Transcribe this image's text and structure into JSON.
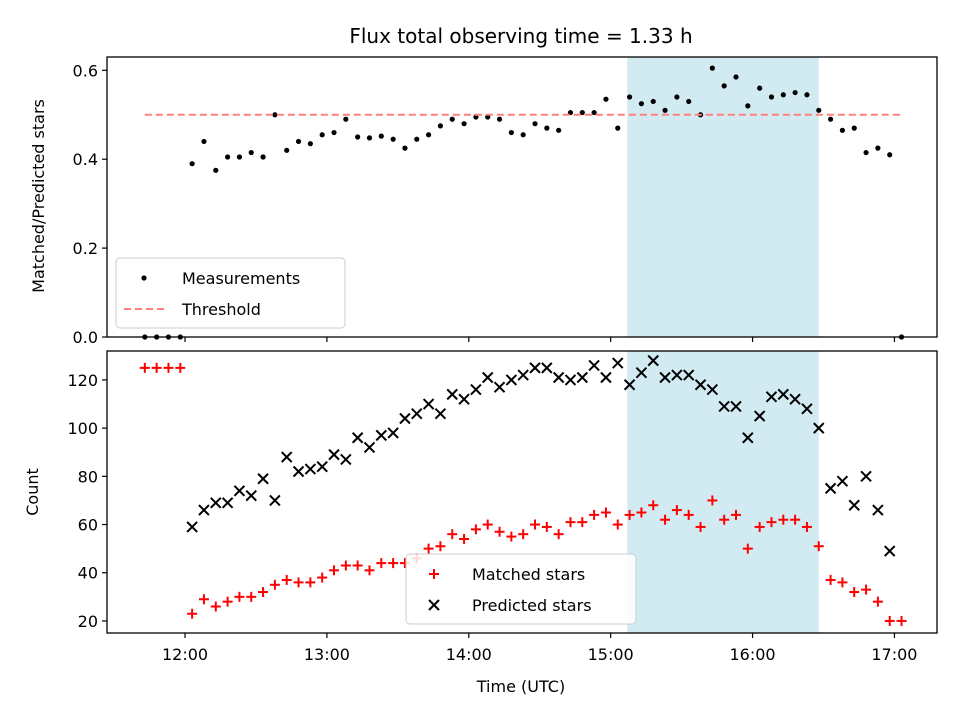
{
  "figure": {
    "title": "Flux total observing time = 1.33 h",
    "xlabel": "Time (UTC)"
  },
  "chart_data": [
    {
      "type": "scatter",
      "panel": "top",
      "ylabel": "Matched/Predicted stars",
      "xlim": [
        "11:27",
        "17:18"
      ],
      "ylim": [
        0,
        0.63
      ],
      "yticks": [
        "0.0",
        "0.2",
        "0.4",
        "0.6"
      ],
      "highlight_span": [
        "15:07",
        "16:28"
      ],
      "highlight_color": "#add8e6",
      "legend_position": "lower left",
      "series": [
        {
          "name": "Measurements",
          "color": "#000000",
          "marker": "dot",
          "points": [
            [
              "11:43",
              0.0
            ],
            [
              "11:48",
              0.0
            ],
            [
              "11:53",
              0.0
            ],
            [
              "11:58",
              0.0
            ],
            [
              "12:03",
              0.39
            ],
            [
              "12:08",
              0.44
            ],
            [
              "12:13",
              0.375
            ],
            [
              "12:18",
              0.405
            ],
            [
              "12:23",
              0.405
            ],
            [
              "12:28",
              0.415
            ],
            [
              "12:33",
              0.405
            ],
            [
              "12:38",
              0.5
            ],
            [
              "12:43",
              0.42
            ],
            [
              "12:48",
              0.44
            ],
            [
              "12:53",
              0.435
            ],
            [
              "12:58",
              0.455
            ],
            [
              "13:03",
              0.46
            ],
            [
              "13:08",
              0.49
            ],
            [
              "13:13",
              0.45
            ],
            [
              "13:18",
              0.448
            ],
            [
              "13:23",
              0.452
            ],
            [
              "13:28",
              0.445
            ],
            [
              "13:33",
              0.425
            ],
            [
              "13:38",
              0.445
            ],
            [
              "13:43",
              0.455
            ],
            [
              "13:48",
              0.475
            ],
            [
              "13:53",
              0.49
            ],
            [
              "13:58",
              0.48
            ],
            [
              "14:03",
              0.495
            ],
            [
              "14:08",
              0.495
            ],
            [
              "14:13",
              0.49
            ],
            [
              "14:18",
              0.46
            ],
            [
              "14:23",
              0.455
            ],
            [
              "14:28",
              0.48
            ],
            [
              "14:33",
              0.47
            ],
            [
              "14:38",
              0.465
            ],
            [
              "14:43",
              0.505
            ],
            [
              "14:48",
              0.505
            ],
            [
              "14:53",
              0.505
            ],
            [
              "14:58",
              0.535
            ],
            [
              "15:03",
              0.47
            ],
            [
              "15:08",
              0.54
            ],
            [
              "15:13",
              0.525
            ],
            [
              "15:18",
              0.53
            ],
            [
              "15:23",
              0.51
            ],
            [
              "15:28",
              0.54
            ],
            [
              "15:33",
              0.53
            ],
            [
              "15:38",
              0.5
            ],
            [
              "15:43",
              0.605
            ],
            [
              "15:48",
              0.565
            ],
            [
              "15:53",
              0.585
            ],
            [
              "15:58",
              0.52
            ],
            [
              "16:03",
              0.56
            ],
            [
              "16:08",
              0.54
            ],
            [
              "16:13",
              0.545
            ],
            [
              "16:18",
              0.55
            ],
            [
              "16:23",
              0.545
            ],
            [
              "16:28",
              0.51
            ],
            [
              "16:33",
              0.49
            ],
            [
              "16:38",
              0.465
            ],
            [
              "16:43",
              0.47
            ],
            [
              "16:48",
              0.415
            ],
            [
              "16:53",
              0.425
            ],
            [
              "16:58",
              0.41
            ],
            [
              "17:03",
              0.0
            ]
          ]
        },
        {
          "name": "Threshold",
          "color": "#ff7f7f",
          "style": "dashed",
          "points": [
            [
              "11:43",
              0.5
            ],
            [
              "17:03",
              0.5
            ]
          ]
        }
      ]
    },
    {
      "type": "scatter",
      "panel": "bottom",
      "ylabel": "Count",
      "xlim": [
        "11:27",
        "17:18"
      ],
      "ylim": [
        15,
        132
      ],
      "yticks": [
        "20",
        "40",
        "60",
        "80",
        "100",
        "120"
      ],
      "xticks": [
        "12:00",
        "13:00",
        "14:00",
        "15:00",
        "16:00",
        "17:00"
      ],
      "highlight_span": [
        "15:07",
        "16:28"
      ],
      "highlight_color": "#add8e6",
      "legend_position": "lower center",
      "series": [
        {
          "name": "Matched stars",
          "color": "#ff0000",
          "marker": "plus",
          "points": [
            [
              "11:43",
              125
            ],
            [
              "11:48",
              125
            ],
            [
              "11:53",
              125
            ],
            [
              "11:58",
              125
            ],
            [
              "12:03",
              23
            ],
            [
              "12:08",
              29
            ],
            [
              "12:13",
              26
            ],
            [
              "12:18",
              28
            ],
            [
              "12:23",
              30
            ],
            [
              "12:28",
              30
            ],
            [
              "12:33",
              32
            ],
            [
              "12:38",
              35
            ],
            [
              "12:43",
              37
            ],
            [
              "12:48",
              36
            ],
            [
              "12:53",
              36
            ],
            [
              "12:58",
              38
            ],
            [
              "13:03",
              41
            ],
            [
              "13:08",
              43
            ],
            [
              "13:13",
              43
            ],
            [
              "13:18",
              41
            ],
            [
              "13:23",
              44
            ],
            [
              "13:28",
              44
            ],
            [
              "13:33",
              44
            ],
            [
              "13:38",
              46
            ],
            [
              "13:43",
              50
            ],
            [
              "13:48",
              51
            ],
            [
              "13:53",
              56
            ],
            [
              "13:58",
              54
            ],
            [
              "14:03",
              58
            ],
            [
              "14:08",
              60
            ],
            [
              "14:13",
              57
            ],
            [
              "14:18",
              55
            ],
            [
              "14:23",
              56
            ],
            [
              "14:28",
              60
            ],
            [
              "14:33",
              59
            ],
            [
              "14:38",
              56
            ],
            [
              "14:43",
              61
            ],
            [
              "14:48",
              61
            ],
            [
              "14:53",
              64
            ],
            [
              "14:58",
              65
            ],
            [
              "15:03",
              60
            ],
            [
              "15:08",
              64
            ],
            [
              "15:13",
              65
            ],
            [
              "15:18",
              68
            ],
            [
              "15:23",
              62
            ],
            [
              "15:28",
              66
            ],
            [
              "15:33",
              64
            ],
            [
              "15:38",
              59
            ],
            [
              "15:43",
              70
            ],
            [
              "15:48",
              62
            ],
            [
              "15:53",
              64
            ],
            [
              "15:58",
              50
            ],
            [
              "16:03",
              59
            ],
            [
              "16:08",
              61
            ],
            [
              "16:13",
              62
            ],
            [
              "16:18",
              62
            ],
            [
              "16:23",
              59
            ],
            [
              "16:28",
              51
            ],
            [
              "16:33",
              37
            ],
            [
              "16:38",
              36
            ],
            [
              "16:43",
              32
            ],
            [
              "16:48",
              33
            ],
            [
              "16:53",
              28
            ],
            [
              "16:58",
              20
            ],
            [
              "17:03",
              20
            ]
          ]
        },
        {
          "name": "Predicted stars",
          "color": "#000000",
          "marker": "x",
          "points": [
            [
              "12:03",
              59
            ],
            [
              "12:08",
              66
            ],
            [
              "12:13",
              69
            ],
            [
              "12:18",
              69
            ],
            [
              "12:23",
              74
            ],
            [
              "12:28",
              72
            ],
            [
              "12:33",
              79
            ],
            [
              "12:38",
              70
            ],
            [
              "12:43",
              88
            ],
            [
              "12:48",
              82
            ],
            [
              "12:53",
              83
            ],
            [
              "12:58",
              84
            ],
            [
              "13:03",
              89
            ],
            [
              "13:08",
              87
            ],
            [
              "13:13",
              96
            ],
            [
              "13:18",
              92
            ],
            [
              "13:23",
              97
            ],
            [
              "13:28",
              98
            ],
            [
              "13:33",
              104
            ],
            [
              "13:38",
              106
            ],
            [
              "13:43",
              110
            ],
            [
              "13:48",
              106
            ],
            [
              "13:53",
              114
            ],
            [
              "13:58",
              112
            ],
            [
              "14:03",
              116
            ],
            [
              "14:08",
              121
            ],
            [
              "14:13",
              117
            ],
            [
              "14:18",
              120
            ],
            [
              "14:23",
              122
            ],
            [
              "14:28",
              125
            ],
            [
              "14:33",
              125
            ],
            [
              "14:38",
              121
            ],
            [
              "14:43",
              120
            ],
            [
              "14:48",
              121
            ],
            [
              "14:53",
              126
            ],
            [
              "14:58",
              121
            ],
            [
              "15:03",
              127
            ],
            [
              "15:08",
              118
            ],
            [
              "15:13",
              123
            ],
            [
              "15:18",
              128
            ],
            [
              "15:23",
              121
            ],
            [
              "15:28",
              122
            ],
            [
              "15:33",
              122
            ],
            [
              "15:38",
              118
            ],
            [
              "15:43",
              116
            ],
            [
              "15:48",
              109
            ],
            [
              "15:53",
              109
            ],
            [
              "15:58",
              96
            ],
            [
              "16:03",
              105
            ],
            [
              "16:08",
              113
            ],
            [
              "16:13",
              114
            ],
            [
              "16:18",
              112
            ],
            [
              "16:23",
              108
            ],
            [
              "16:28",
              100
            ],
            [
              "16:33",
              75
            ],
            [
              "16:38",
              78
            ],
            [
              "16:43",
              68
            ],
            [
              "16:48",
              80
            ],
            [
              "16:53",
              66
            ],
            [
              "16:58",
              49
            ]
          ]
        }
      ]
    }
  ]
}
